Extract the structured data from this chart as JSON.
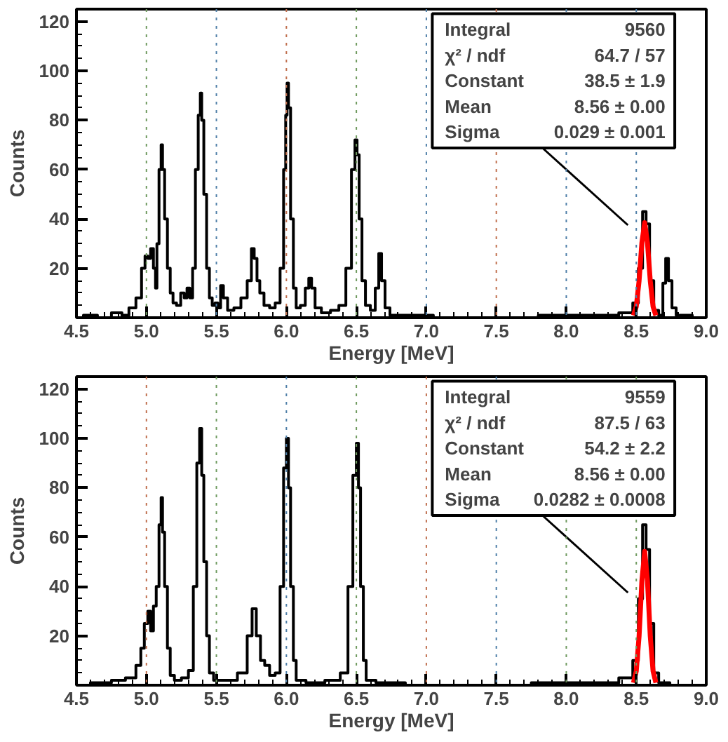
{
  "chart_data": [
    {
      "type": "step",
      "xlabel": "Energy [MeV]",
      "ylabel": "Counts",
      "xlim": [
        4.5,
        9.0
      ],
      "ylim": [
        0,
        125
      ],
      "xticks": [
        4.5,
        {
          "value": 5,
          "label": "5.0"
        },
        5.5,
        {
          "value": 6,
          "label": "6.0"
        },
        6.5,
        {
          "value": 7,
          "label": "7.0"
        },
        7.5,
        {
          "value": 8,
          "label": "8.0"
        },
        8.5,
        {
          "value": 9,
          "label": "9.0"
        }
      ],
      "yticks": [
        20,
        40,
        60,
        80,
        100,
        120
      ],
      "ref_lines": [
        {
          "axis": "x",
          "value": 5.0,
          "color": "#6f9a5f",
          "line_style": "dotted"
        },
        {
          "axis": "x",
          "value": 5.5,
          "color": "#4f7fa8",
          "line_style": "dotted"
        },
        {
          "axis": "x",
          "value": 6.0,
          "color": "#c0704f",
          "line_style": "dotted"
        },
        {
          "axis": "x",
          "value": 6.5,
          "color": "#6f9a5f",
          "line_style": "dotted"
        },
        {
          "axis": "x",
          "value": 7.0,
          "color": "#4f7fa8",
          "line_style": "dotted"
        },
        {
          "axis": "x",
          "value": 7.5,
          "color": "#c0704f",
          "line_style": "dotted"
        },
        {
          "axis": "x",
          "value": 8.0,
          "color": "#4f7fa8",
          "line_style": "dotted"
        },
        {
          "axis": "x",
          "value": 8.5,
          "color": "#4f7fa8",
          "line_style": "dotted"
        }
      ],
      "annotations": [
        "Integral",
        "9560",
        "χ² / ndf",
        "64.7 / 57",
        "Constant",
        "38.5 ± 1.9",
        "Mean",
        "8.56 ± 0.00",
        "Sigma",
        "0.029 ± 0.001"
      ],
      "series": [
        {
          "color": "#000000",
          "x": [
            4.5,
            4.6,
            4.7,
            4.8,
            4.85,
            4.9,
            4.95,
            4.98,
            5.0,
            5.02,
            5.04,
            5.06,
            5.07,
            5.08,
            5.1,
            5.11,
            5.12,
            5.14,
            5.16,
            5.18,
            5.2,
            5.23,
            5.26,
            5.28,
            5.3,
            5.32,
            5.34,
            5.36,
            5.38,
            5.39,
            5.4,
            5.42,
            5.44,
            5.46,
            5.48,
            5.5,
            5.52,
            5.54,
            5.56,
            5.6,
            5.65,
            5.7,
            5.74,
            5.76,
            5.78,
            5.8,
            5.82,
            5.86,
            5.9,
            5.94,
            5.97,
            5.99,
            6.0,
            6.01,
            6.02,
            6.04,
            6.06,
            6.08,
            6.12,
            6.15,
            6.17,
            6.19,
            6.22,
            6.28,
            6.35,
            6.4,
            6.45,
            6.48,
            6.5,
            6.51,
            6.53,
            6.55,
            6.58,
            6.62,
            6.65,
            6.67,
            6.69,
            6.72,
            6.76,
            6.9,
            7.2,
            7.6,
            8.0,
            8.3,
            8.45,
            8.5,
            8.53,
            8.56,
            8.58,
            8.61,
            8.64,
            8.68,
            8.7,
            8.72,
            8.74,
            8.77,
            8.8,
            9.0
          ],
          "values": [
            0,
            1,
            0,
            2,
            1,
            4,
            8,
            20,
            25,
            24,
            28,
            20,
            12,
            30,
            60,
            70,
            60,
            40,
            20,
            10,
            6,
            5,
            10,
            8,
            12,
            8,
            20,
            60,
            82,
            91,
            80,
            50,
            20,
            8,
            5,
            6,
            4,
            13,
            8,
            3,
            4,
            8,
            15,
            28,
            24,
            15,
            10,
            5,
            4,
            6,
            20,
            60,
            82,
            95,
            85,
            40,
            12,
            4,
            5,
            12,
            16,
            12,
            4,
            2,
            3,
            5,
            20,
            60,
            72,
            66,
            40,
            15,
            5,
            3,
            12,
            26,
            15,
            4,
            1,
            1,
            0,
            0,
            1,
            1,
            2,
            6,
            20,
            43,
            38,
            15,
            3,
            1,
            14,
            24,
            15,
            4,
            1,
            0
          ]
        },
        {
          "type": "line",
          "color": "#ff0000",
          "x": [
            8.48,
            8.5,
            8.52,
            8.54,
            8.56,
            8.58,
            8.6,
            8.62,
            8.64
          ],
          "values": [
            0.9,
            4.5,
            14.9,
            30.3,
            38.5,
            30.3,
            14.9,
            4.5,
            0.9
          ]
        }
      ]
    },
    {
      "type": "step",
      "xlabel": "Energy [MeV]",
      "ylabel": "Counts",
      "xlim": [
        4.5,
        9.0
      ],
      "ylim": [
        0,
        125
      ],
      "xticks": [
        4.5,
        {
          "value": 5,
          "label": "5.0"
        },
        5.5,
        {
          "value": 6,
          "label": "6.0"
        },
        6.5,
        {
          "value": 7,
          "label": "7.0"
        },
        7.5,
        {
          "value": 8,
          "label": "8.0"
        },
        8.5,
        {
          "value": 9,
          "label": "9.0"
        }
      ],
      "yticks": [
        20,
        40,
        60,
        80,
        100,
        120
      ],
      "ref_lines": [
        {
          "axis": "x",
          "value": 5.0,
          "color": "#c0704f",
          "line_style": "dotted"
        },
        {
          "axis": "x",
          "value": 5.5,
          "color": "#6f9a5f",
          "line_style": "dotted"
        },
        {
          "axis": "x",
          "value": 6.0,
          "color": "#4f7fa8",
          "line_style": "dotted"
        },
        {
          "axis": "x",
          "value": 6.5,
          "color": "#6f9a5f",
          "line_style": "dotted"
        },
        {
          "axis": "x",
          "value": 7.0,
          "color": "#c0704f",
          "line_style": "dotted"
        },
        {
          "axis": "x",
          "value": 7.5,
          "color": "#4f7fa8",
          "line_style": "dotted"
        },
        {
          "axis": "x",
          "value": 8.0,
          "color": "#6f9a5f",
          "line_style": "dotted"
        },
        {
          "axis": "x",
          "value": 8.5,
          "color": "#6f9a5f",
          "line_style": "dotted"
        }
      ],
      "annotations": [
        "Integral",
        "9559",
        "χ² / ndf",
        "87.5 / 63",
        "Constant",
        "54.2 ± 2.2",
        "Mean",
        "8.56 ± 0.00",
        "Sigma",
        "0.0282 ± 0.0008"
      ],
      "series": [
        {
          "color": "#000000",
          "x": [
            4.5,
            4.7,
            4.8,
            4.9,
            4.95,
            4.97,
            5.0,
            5.02,
            5.04,
            5.06,
            5.08,
            5.1,
            5.11,
            5.12,
            5.14,
            5.16,
            5.18,
            5.22,
            5.28,
            5.32,
            5.35,
            5.37,
            5.39,
            5.4,
            5.42,
            5.44,
            5.46,
            5.5,
            5.6,
            5.7,
            5.74,
            5.77,
            5.8,
            5.83,
            5.86,
            5.9,
            5.94,
            5.97,
            5.99,
            6.01,
            6.02,
            6.04,
            6.06,
            6.08,
            6.2,
            6.35,
            6.42,
            6.46,
            6.49,
            6.51,
            6.52,
            6.54,
            6.56,
            6.58,
            6.7,
            7.0,
            7.5,
            8.0,
            8.3,
            8.45,
            8.5,
            8.53,
            8.56,
            8.58,
            8.61,
            8.64,
            8.68,
            8.8,
            9.0
          ],
          "values": [
            0,
            1,
            2,
            3,
            8,
            15,
            25,
            30,
            22,
            32,
            40,
            65,
            76,
            62,
            40,
            15,
            4,
            2,
            3,
            6,
            40,
            90,
            104,
            85,
            50,
            20,
            5,
            2,
            2,
            5,
            20,
            31,
            20,
            10,
            8,
            4,
            5,
            40,
            88,
            100,
            80,
            40,
            10,
            2,
            1,
            2,
            5,
            40,
            85,
            98,
            80,
            40,
            10,
            2,
            1,
            0,
            0,
            1,
            1,
            3,
            10,
            35,
            65,
            55,
            25,
            5,
            1,
            0,
            0
          ]
        },
        {
          "type": "line",
          "color": "#ff0000",
          "x": [
            8.48,
            8.5,
            8.52,
            8.54,
            8.56,
            8.58,
            8.6,
            8.62,
            8.64
          ],
          "values": [
            1.0,
            5.7,
            19.8,
            42.2,
            54.2,
            42.2,
            19.8,
            5.7,
            1.0
          ]
        }
      ]
    }
  ]
}
